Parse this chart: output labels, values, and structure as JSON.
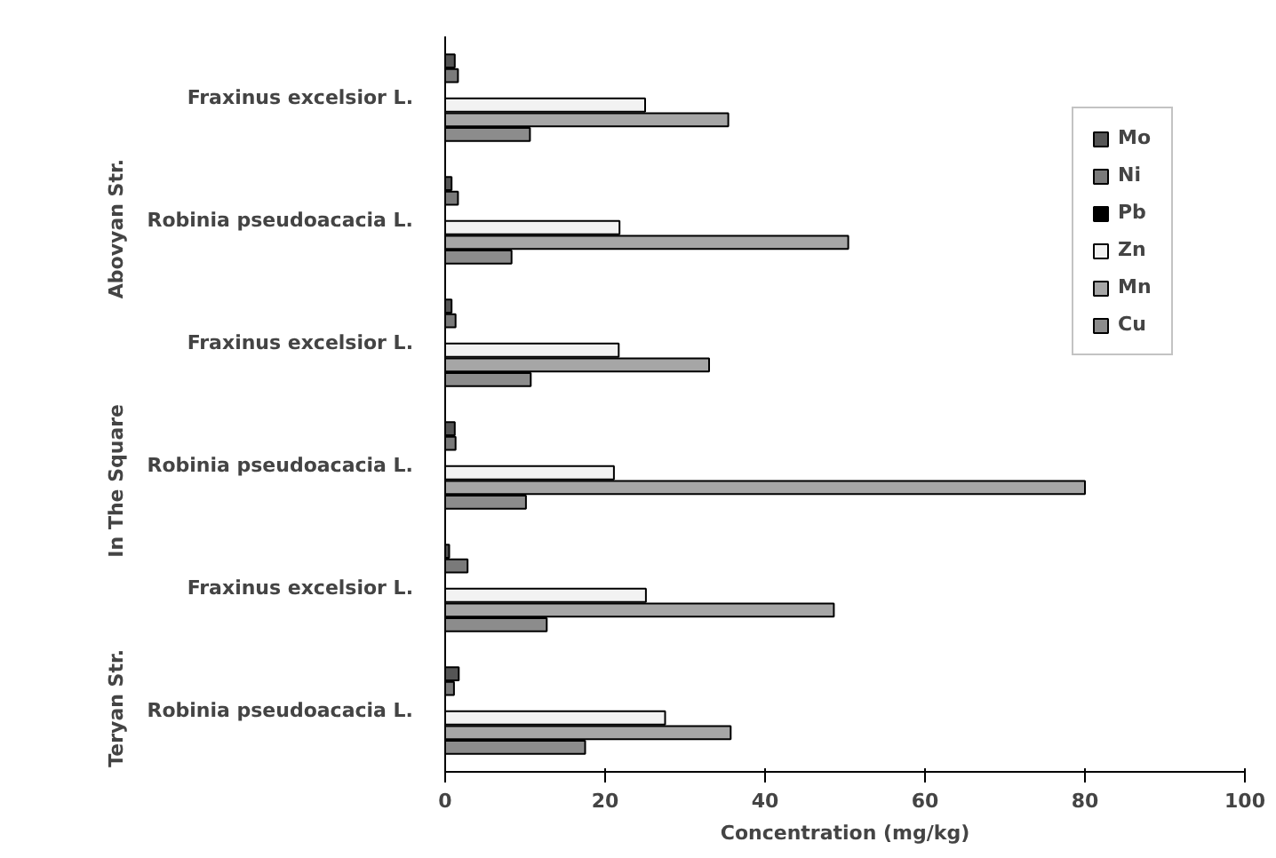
{
  "chart_data": {
    "type": "bar",
    "orientation": "horizontal",
    "xlabel": "Concentration (mg/kg)",
    "categories": [
      "Fraxinus excelsior L.",
      "Robinia pseudoacacia L.",
      "Fraxinus excelsior L.",
      "Robinia pseudoacacia L.",
      "Fraxinus excelsior L.",
      "Robinia pseudoacacia L."
    ],
    "annotations": [
      "Abovyan Str.",
      "In The Square",
      "Teryan Str."
    ],
    "series": [
      {
        "name": "Mo",
        "color": "#555555",
        "values": [
          1.2,
          0.8,
          0.8,
          1.2,
          0.5,
          1.7
        ]
      },
      {
        "name": "Ni",
        "color": "#7a7a7a",
        "values": [
          1.6,
          1.6,
          1.3,
          1.3,
          2.8,
          1.1
        ]
      },
      {
        "name": "Pb",
        "color": "#000000",
        "values": [
          0,
          0,
          0,
          0,
          0,
          0
        ]
      },
      {
        "name": "Zn",
        "color": "#f2f2f2",
        "values": [
          25,
          21.8,
          21.7,
          21.1,
          25.1,
          27.5
        ]
      },
      {
        "name": "Mn",
        "color": "#a6a6a6",
        "values": [
          35.4,
          50.4,
          33,
          80,
          48.6,
          35.7
        ]
      },
      {
        "name": "Cu",
        "color": "#8c8c8c",
        "values": [
          10.6,
          8.3,
          10.7,
          10.1,
          12.7,
          17.5
        ]
      }
    ],
    "xlim": [
      0,
      100
    ],
    "xticks": [
      0,
      20,
      40,
      60,
      80,
      100
    ],
    "grid": false,
    "legend": "top right"
  }
}
